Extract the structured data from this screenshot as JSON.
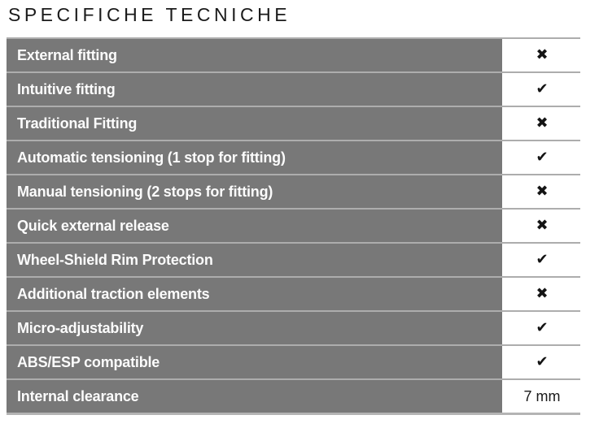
{
  "page": {
    "title": "SPECIFICHE TECNICHE"
  },
  "colors": {
    "row_background": "#787878",
    "row_text": "#fcfcfc",
    "separator": "#adadad",
    "mark_color": "#141414",
    "title_color": "#1a1a1a",
    "value_background": "#ffffff"
  },
  "icons": {
    "check": "✔",
    "cross": "✖"
  },
  "table": {
    "rows": [
      {
        "label": "External fitting",
        "value": "cross"
      },
      {
        "label": "Intuitive fitting",
        "value": "check"
      },
      {
        "label": "Traditional Fitting",
        "value": "cross"
      },
      {
        "label": "Automatic tensioning (1 stop for fitting)",
        "value": "check"
      },
      {
        "label": "Manual tensioning (2 stops for fitting)",
        "value": "cross"
      },
      {
        "label": "Quick external release",
        "value": "cross"
      },
      {
        "label": "Wheel-Shield Rim Protection",
        "value": "check"
      },
      {
        "label": "Additional traction elements",
        "value": "cross"
      },
      {
        "label": "Micro-adjustability",
        "value": "check"
      },
      {
        "label": "ABS/ESP compatible",
        "value": "check"
      },
      {
        "label": "Internal clearance",
        "value": "7 mm"
      }
    ]
  }
}
